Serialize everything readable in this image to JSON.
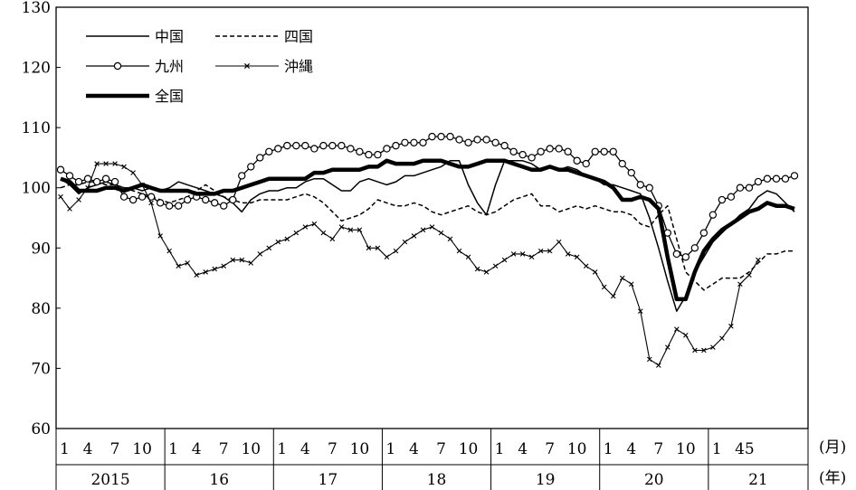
{
  "chart_data": {
    "type": "line",
    "title": "",
    "xlabel": "",
    "ylabel": "",
    "ylim": [
      60,
      130
    ],
    "y_ticks": [
      "60",
      "70",
      "80",
      "90",
      "100",
      "110",
      "120",
      "130"
    ],
    "grid": false,
    "legend_position": "top-left",
    "month_unit": "(月)",
    "year_unit": "(年)",
    "month_ticks": [
      "1",
      "4",
      "7",
      "10",
      "1",
      "4",
      "7",
      "10",
      "1",
      "4",
      "7",
      "10",
      "1",
      "4",
      "7",
      "10",
      "1",
      "4",
      "7",
      "10",
      "1",
      "4",
      "7",
      "10",
      "1",
      "45"
    ],
    "years": [
      "2015",
      "16",
      "17",
      "18",
      "19",
      "20",
      "21"
    ],
    "series": [
      {
        "name": "中国",
        "style": "solid-thin",
        "color": "#000000",
        "values": [
          101.5,
          100.5,
          99.0,
          100.0,
          100.5,
          101.0,
          100.5,
          100.0,
          100.0,
          99.5,
          100.0,
          99.5,
          100.0,
          101.0,
          100.5,
          100.0,
          99.5,
          99.0,
          98.5,
          97.5,
          96.0,
          98.0,
          99.0,
          99.5,
          99.5,
          100.0,
          100.0,
          101.0,
          101.5,
          101.5,
          100.5,
          99.5,
          99.5,
          101.0,
          101.5,
          101.0,
          100.5,
          101.0,
          102.0,
          102.0,
          102.5,
          103.0,
          103.5,
          104.5,
          104.5,
          100.5,
          97.5,
          95.5,
          100.5,
          104.5,
          104.5,
          104.5,
          104.0,
          103.0,
          103.5,
          103.0,
          103.5,
          103.0,
          102.0,
          101.5,
          100.5,
          100.5,
          100.0,
          99.5,
          99.0,
          95.0,
          90.0,
          84.5,
          79.5,
          82.0,
          86.0,
          88.5,
          91.0,
          92.5,
          94.0,
          95.5,
          96.5,
          98.5,
          99.5,
          99.0,
          97.5,
          96.0
        ]
      },
      {
        "name": "四国",
        "style": "dashed",
        "color": "#000000",
        "values": [
          100.0,
          100.5,
          100.5,
          101.0,
          101.0,
          100.5,
          100.5,
          100.0,
          99.5,
          99.0,
          98.5,
          98.0,
          97.5,
          98.0,
          98.5,
          99.5,
          100.5,
          99.5,
          98.5,
          98.0,
          97.5,
          97.5,
          98.0,
          98.0,
          98.0,
          98.0,
          98.5,
          99.0,
          98.5,
          97.5,
          96.0,
          94.5,
          95.0,
          95.5,
          96.5,
          98.0,
          97.5,
          97.0,
          97.0,
          97.5,
          97.0,
          96.0,
          95.5,
          96.0,
          96.5,
          97.0,
          96.0,
          95.5,
          96.0,
          97.0,
          98.0,
          98.5,
          99.0,
          97.0,
          97.0,
          96.0,
          96.5,
          97.0,
          96.5,
          97.0,
          96.5,
          96.0,
          96.0,
          95.5,
          94.0,
          93.5,
          95.5,
          97.0,
          91.5,
          86.0,
          84.5,
          83.0,
          84.0,
          85.0,
          85.0,
          85.0,
          86.0,
          87.5,
          89.0,
          89.0,
          89.5,
          89.5
        ]
      },
      {
        "name": "九州",
        "style": "circle-markers",
        "color": "#000000",
        "values": [
          103.0,
          102.0,
          101.0,
          101.5,
          101.0,
          101.5,
          101.0,
          98.5,
          98.0,
          98.5,
          98.5,
          97.5,
          97.0,
          97.0,
          98.0,
          98.5,
          98.0,
          97.5,
          97.0,
          98.0,
          102.0,
          103.5,
          105.0,
          106.0,
          106.5,
          107.0,
          107.0,
          107.0,
          106.5,
          107.0,
          107.0,
          107.0,
          106.5,
          106.0,
          105.5,
          105.5,
          106.5,
          107.0,
          107.5,
          107.5,
          107.5,
          108.5,
          108.5,
          108.5,
          108.0,
          107.5,
          108.0,
          108.0,
          107.5,
          107.0,
          106.0,
          105.5,
          105.0,
          106.0,
          106.5,
          106.5,
          106.0,
          104.5,
          104.0,
          106.0,
          106.0,
          106.0,
          104.0,
          102.5,
          100.5,
          100.0,
          97.0,
          92.5,
          89.0,
          88.5,
          90.0,
          92.5,
          95.5,
          98.0,
          98.5,
          100.0,
          100.0,
          101.0,
          101.5,
          101.5,
          101.5,
          102.0
        ]
      },
      {
        "name": "沖縄",
        "style": "x-markers",
        "color": "#000000",
        "values": [
          98.5,
          96.5,
          98.0,
          100.0,
          104.0,
          104.0,
          104.0,
          103.5,
          102.5,
          100.5,
          97.5,
          92.0,
          89.5,
          87.0,
          87.5,
          85.5,
          86.0,
          86.5,
          87.0,
          88.0,
          88.0,
          87.5,
          89.0,
          90.0,
          91.0,
          91.5,
          92.5,
          93.5,
          94.0,
          92.5,
          91.5,
          93.5,
          93.0,
          93.0,
          90.0,
          90.0,
          88.5,
          89.5,
          91.0,
          92.0,
          93.0,
          93.5,
          92.5,
          91.5,
          89.5,
          88.5,
          86.5,
          86.0,
          87.0,
          88.0,
          89.0,
          89.0,
          88.5,
          89.5,
          89.5,
          91.0,
          89.0,
          88.5,
          87.0,
          86.0,
          83.5,
          82.0,
          85.0,
          84.0,
          79.5,
          71.5,
          70.5,
          73.5,
          76.5,
          75.5,
          73.0,
          73.0,
          73.5,
          75.0,
          77.0,
          84.0,
          85.5,
          88.0
        ]
      },
      {
        "name": "全国",
        "style": "solid-thick",
        "color": "#000000",
        "values": [
          101.5,
          101.0,
          99.5,
          99.5,
          99.5,
          100.0,
          100.0,
          99.5,
          100.0,
          100.5,
          100.0,
          99.5,
          99.5,
          99.5,
          99.5,
          99.0,
          99.0,
          99.0,
          99.5,
          99.5,
          100.0,
          100.5,
          101.0,
          101.5,
          101.5,
          101.5,
          101.5,
          101.5,
          102.5,
          102.5,
          103.0,
          103.0,
          103.0,
          103.0,
          103.5,
          103.5,
          104.5,
          104.0,
          104.0,
          104.0,
          104.5,
          104.5,
          104.5,
          104.0,
          103.5,
          103.5,
          104.0,
          104.5,
          104.5,
          104.5,
          104.0,
          103.5,
          103.0,
          103.0,
          103.5,
          103.0,
          103.0,
          102.5,
          102.0,
          101.5,
          101.0,
          100.0,
          98.0,
          98.0,
          98.5,
          98.0,
          96.5,
          88.5,
          81.5,
          81.5,
          86.0,
          89.5,
          91.5,
          93.0,
          94.0,
          95.0,
          96.0,
          96.5,
          97.5,
          97.0,
          97.0,
          96.5
        ]
      }
    ]
  }
}
